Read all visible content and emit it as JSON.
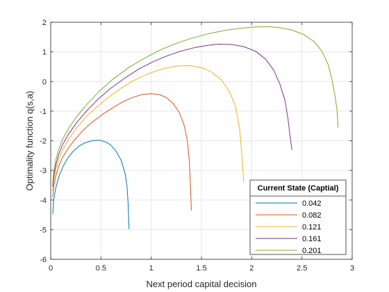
{
  "chart_data": {
    "type": "line",
    "xlabel": "Next period capital decision",
    "ylabel": "Optimality function q(s,a)",
    "xlim": [
      0,
      3
    ],
    "ylim": [
      -6,
      2
    ],
    "xticks": [
      0,
      0.5,
      1,
      1.5,
      2,
      2.5,
      3
    ],
    "xtick_labels": [
      "0",
      "0.5",
      "1",
      "1.5",
      "2",
      "2.5",
      "3"
    ],
    "yticks": [
      -6,
      -5,
      -4,
      -3,
      -2,
      -1,
      0,
      1,
      2
    ],
    "ytick_labels": [
      "-6",
      "-5",
      "-4",
      "-3",
      "-2",
      "-1",
      "0",
      "1",
      "2"
    ],
    "grid": true,
    "legend": {
      "title": "Current State (Captial)",
      "placement": "bottom-right"
    },
    "series": [
      {
        "name": "0.042",
        "color": "#0072BD",
        "x": [
          0.02,
          0.03,
          0.05,
          0.08,
          0.12,
          0.17,
          0.22,
          0.28,
          0.34,
          0.4,
          0.46,
          0.5,
          0.55,
          0.6,
          0.65,
          0.7,
          0.74,
          0.76,
          0.77,
          0.78
        ],
        "y": [
          -4.47,
          -4.0,
          -3.6,
          -3.23,
          -2.88,
          -2.58,
          -2.37,
          -2.18,
          -2.07,
          -2.01,
          -1.98,
          -1.99,
          -2.04,
          -2.15,
          -2.35,
          -2.65,
          -3.1,
          -3.55,
          -4.1,
          -4.98
        ]
      },
      {
        "name": "0.082",
        "color": "#D95319",
        "x": [
          0.02,
          0.03,
          0.05,
          0.08,
          0.12,
          0.18,
          0.25,
          0.33,
          0.42,
          0.52,
          0.62,
          0.72,
          0.82,
          0.92,
          1.0,
          1.08,
          1.15,
          1.22,
          1.28,
          1.33,
          1.36,
          1.38,
          1.39,
          1.4
        ],
        "y": [
          -3.9,
          -3.55,
          -3.2,
          -2.85,
          -2.55,
          -2.22,
          -1.92,
          -1.62,
          -1.35,
          -1.1,
          -0.88,
          -0.68,
          -0.53,
          -0.43,
          -0.41,
          -0.44,
          -0.54,
          -0.75,
          -1.05,
          -1.5,
          -2.0,
          -2.7,
          -3.5,
          -4.35
        ]
      },
      {
        "name": "0.121",
        "color": "#EDB120",
        "x": [
          0.02,
          0.03,
          0.05,
          0.08,
          0.12,
          0.18,
          0.26,
          0.35,
          0.45,
          0.56,
          0.68,
          0.8,
          0.92,
          1.04,
          1.15,
          1.25,
          1.33,
          1.4,
          1.5,
          1.6,
          1.7,
          1.78,
          1.84,
          1.88,
          1.9,
          1.92
        ],
        "y": [
          -3.7,
          -3.35,
          -2.98,
          -2.62,
          -2.3,
          -1.94,
          -1.56,
          -1.2,
          -0.88,
          -0.57,
          -0.27,
          -0.01,
          0.19,
          0.35,
          0.46,
          0.52,
          0.54,
          0.53,
          0.47,
          0.32,
          0.05,
          -0.35,
          -0.85,
          -1.6,
          -2.4,
          -3.4
        ]
      },
      {
        "name": "0.161",
        "color": "#7E2F8E",
        "x": [
          0.02,
          0.03,
          0.05,
          0.08,
          0.12,
          0.18,
          0.26,
          0.36,
          0.47,
          0.6,
          0.74,
          0.88,
          1.02,
          1.16,
          1.3,
          1.44,
          1.56,
          1.68,
          1.8,
          1.92,
          2.04,
          2.14,
          2.22,
          2.28,
          2.33,
          2.36,
          2.38,
          2.4
        ],
        "y": [
          -3.55,
          -3.2,
          -2.82,
          -2.45,
          -2.12,
          -1.76,
          -1.38,
          -0.98,
          -0.6,
          -0.22,
          0.12,
          0.43,
          0.67,
          0.87,
          1.03,
          1.15,
          1.22,
          1.26,
          1.25,
          1.18,
          1.02,
          0.75,
          0.38,
          -0.08,
          -0.62,
          -1.22,
          -1.8,
          -2.3
        ]
      },
      {
        "name": "0.201",
        "color": "#77AC30",
        "x": [
          0.02,
          0.03,
          0.05,
          0.08,
          0.12,
          0.18,
          0.26,
          0.36,
          0.48,
          0.62,
          0.78,
          0.94,
          1.1,
          1.26,
          1.42,
          1.58,
          1.74,
          1.9,
          2.04,
          2.16,
          2.28,
          2.4,
          2.52,
          2.62,
          2.7,
          2.76,
          2.8,
          2.83,
          2.85,
          2.86
        ],
        "y": [
          -3.4,
          -3.05,
          -2.66,
          -2.28,
          -1.94,
          -1.57,
          -1.18,
          -0.77,
          -0.34,
          0.08,
          0.48,
          0.8,
          1.08,
          1.3,
          1.48,
          1.62,
          1.73,
          1.8,
          1.84,
          1.85,
          1.82,
          1.74,
          1.58,
          1.35,
          1.02,
          0.58,
          0.05,
          -0.5,
          -1.0,
          -1.55
        ]
      }
    ]
  }
}
